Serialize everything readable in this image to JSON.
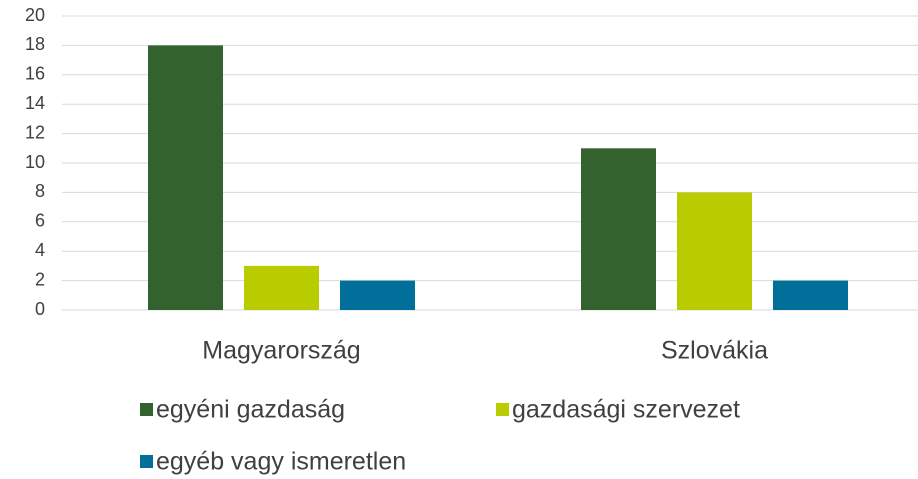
{
  "chart_data": {
    "type": "bar",
    "categories": [
      "Magyarország",
      "Szlovákia"
    ],
    "series": [
      {
        "name": "egyéni gazdaság",
        "color": "#33622f",
        "values": [
          18,
          11
        ]
      },
      {
        "name": "gazdasági szervezet",
        "color": "#b8cc00",
        "values": [
          3,
          8
        ]
      },
      {
        "name": "egyéb vagy ismeretlen",
        "color": "#00709a",
        "values": [
          2,
          2
        ]
      }
    ],
    "ylim": [
      0,
      20
    ],
    "yticks": [
      0,
      2,
      4,
      6,
      8,
      10,
      12,
      14,
      16,
      18,
      20
    ],
    "grid": true,
    "legend": "bottom"
  }
}
